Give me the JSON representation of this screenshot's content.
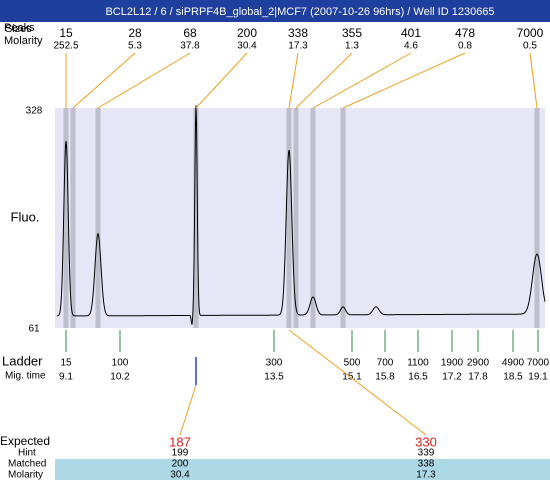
{
  "title": "BCL2L12 / 6 / siPRPF4B_global_2|MCF7 (2007-10-26 96hrs) / Well ID 1230665",
  "header": {
    "peaks_label": "Peaks",
    "sizes_label": "Sizes",
    "molarity_label": "Molarity"
  },
  "peaks": [
    {
      "size": 15,
      "molarity": 252.5
    },
    {
      "size": 28,
      "molarity": 5.3
    },
    {
      "size": 68,
      "molarity": 37.8
    },
    {
      "size": 200,
      "molarity": 30.4
    },
    {
      "size": 338,
      "molarity": 17.3
    },
    {
      "size": 355,
      "molarity": 1.3
    },
    {
      "size": 401,
      "molarity": 4.6
    },
    {
      "size": 478,
      "molarity": 0.8
    },
    {
      "size": 7000,
      "molarity": 0.5
    }
  ],
  "y_axis": {
    "label": "Fluo.",
    "max": 328,
    "min": 61
  },
  "ladder": {
    "label": "Ladder",
    "time_label": "Mig. time",
    "items": [
      {
        "size": 15,
        "time": 9.1
      },
      {
        "size": 100,
        "time": 10.2
      },
      {
        "size": 300,
        "time": 13.5
      },
      {
        "size": 500,
        "time": 15.1
      },
      {
        "size": 700,
        "time": 15.8
      },
      {
        "size": 1100,
        "time": 16.5
      },
      {
        "size": 1900,
        "time": 17.2
      },
      {
        "size": 2900,
        "time": 17.8
      },
      {
        "size": 4900,
        "time": 18.5
      },
      {
        "size": 7000,
        "time": 19.1
      }
    ]
  },
  "expected": {
    "labels": {
      "expected": "Expected",
      "hint": "Hint",
      "matched": "Matched",
      "molarity": "Molarity"
    },
    "items": [
      {
        "expected": 187,
        "hint": 199,
        "matched": 200,
        "molarity": 30.4
      },
      {
        "expected": 330,
        "hint": 339,
        "matched": 338,
        "molarity": 17.3
      }
    ]
  }
}
